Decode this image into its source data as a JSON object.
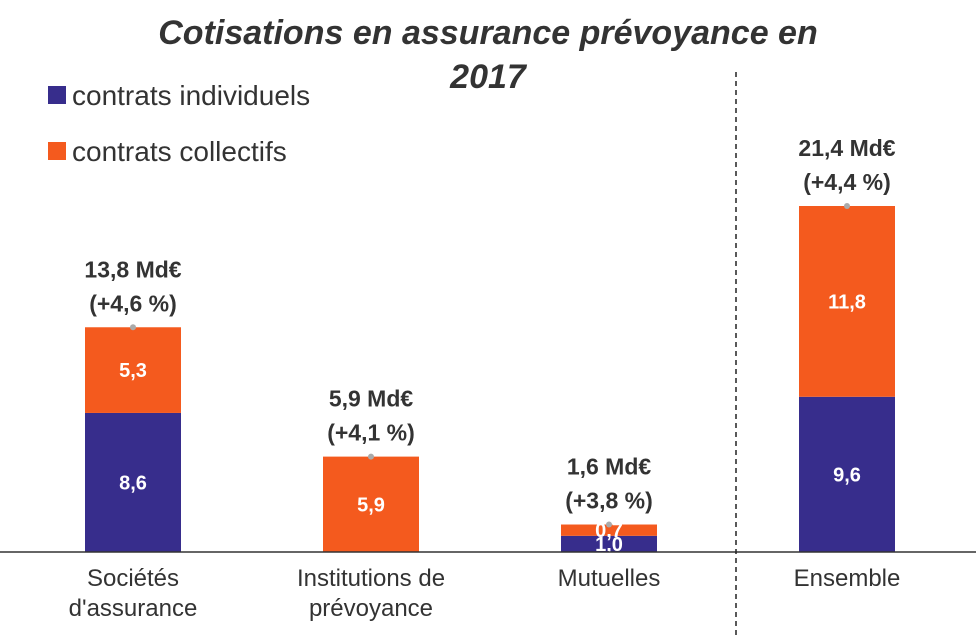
{
  "chart_data": {
    "type": "bar",
    "stacked": true,
    "title": "Cotisations en assurance prévoyance en 2017",
    "categories": [
      "Sociétés d'assurance",
      "Institutions de prévoyance",
      "Mutuelles",
      "Ensemble"
    ],
    "series": [
      {
        "name": "contrats individuels",
        "color": "#372D8C",
        "values": [
          8.6,
          0,
          1.0,
          9.6
        ]
      },
      {
        "name": "contrats collectifs",
        "color": "#F45A1E",
        "values": [
          5.3,
          5.9,
          0.7,
          11.8
        ]
      }
    ],
    "segment_labels": [
      [
        "8,6",
        "",
        "1,0",
        "9,6"
      ],
      [
        "5,3",
        "5,9",
        "0,7",
        "11,8"
      ]
    ],
    "totals": [
      {
        "amount": "13,8 Md€",
        "change": "(+4,6 %)"
      },
      {
        "amount": "5,9 Md€",
        "change": "(+4,1 %)"
      },
      {
        "amount": "1,6 Md€",
        "change": "(+3,8 %)"
      },
      {
        "amount": "21,4 Md€",
        "change": "(+4,4 %)"
      }
    ],
    "ylim": [
      0,
      21.4
    ],
    "legend_position": "top-left",
    "grid": false,
    "separator_before_last": true,
    "label_color": "#333333"
  }
}
